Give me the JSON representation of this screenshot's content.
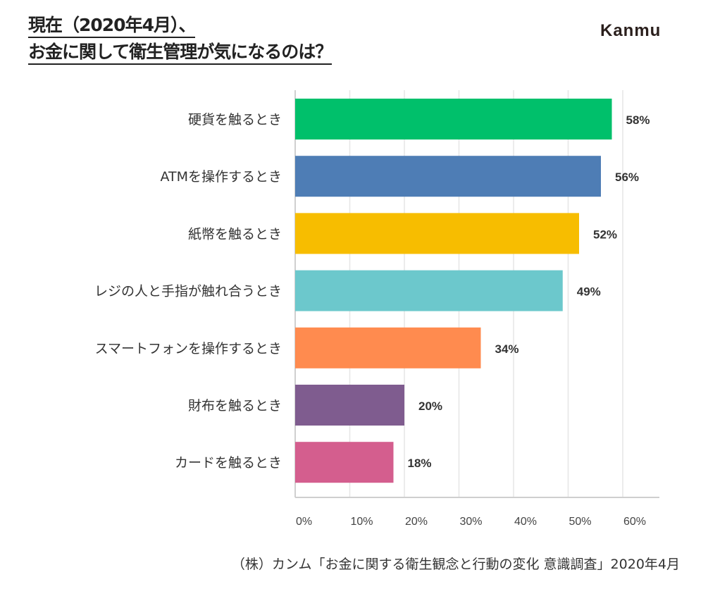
{
  "title_line1": "現在（2020年4月）、",
  "title_line2": "お金に関して衛生管理が気になるのは？",
  "logo": "Kanmu",
  "source": "（株）カンム「お金に関する衛生観念と行動の変化 意識調査」2020年4月",
  "chart_data": {
    "type": "bar",
    "orientation": "horizontal",
    "categories": [
      "硬貨を触るとき",
      "ATMを操作するとき",
      "紙幣を触るとき",
      "レジの人と手指が触れ合うとき",
      "スマートフォンを操作するとき",
      "財布を触るとき",
      "カードを触るとき"
    ],
    "values": [
      58,
      56,
      52,
      49,
      34,
      20,
      18
    ],
    "data_labels": [
      "58%",
      "56%",
      "52%",
      "49%",
      "34%",
      "20%",
      "18%"
    ],
    "colors": [
      "#00c06b",
      "#4e7db5",
      "#f7bd00",
      "#6cc8cc",
      "#ff8b4f",
      "#7f5c8f",
      "#d45e8e"
    ],
    "xlim": [
      0,
      65
    ],
    "xticks": [
      0,
      10,
      20,
      30,
      40,
      50,
      60
    ],
    "xtick_labels": [
      "0%",
      "10%",
      "20%",
      "30%",
      "40%",
      "50%",
      "60%"
    ],
    "grid": true
  }
}
